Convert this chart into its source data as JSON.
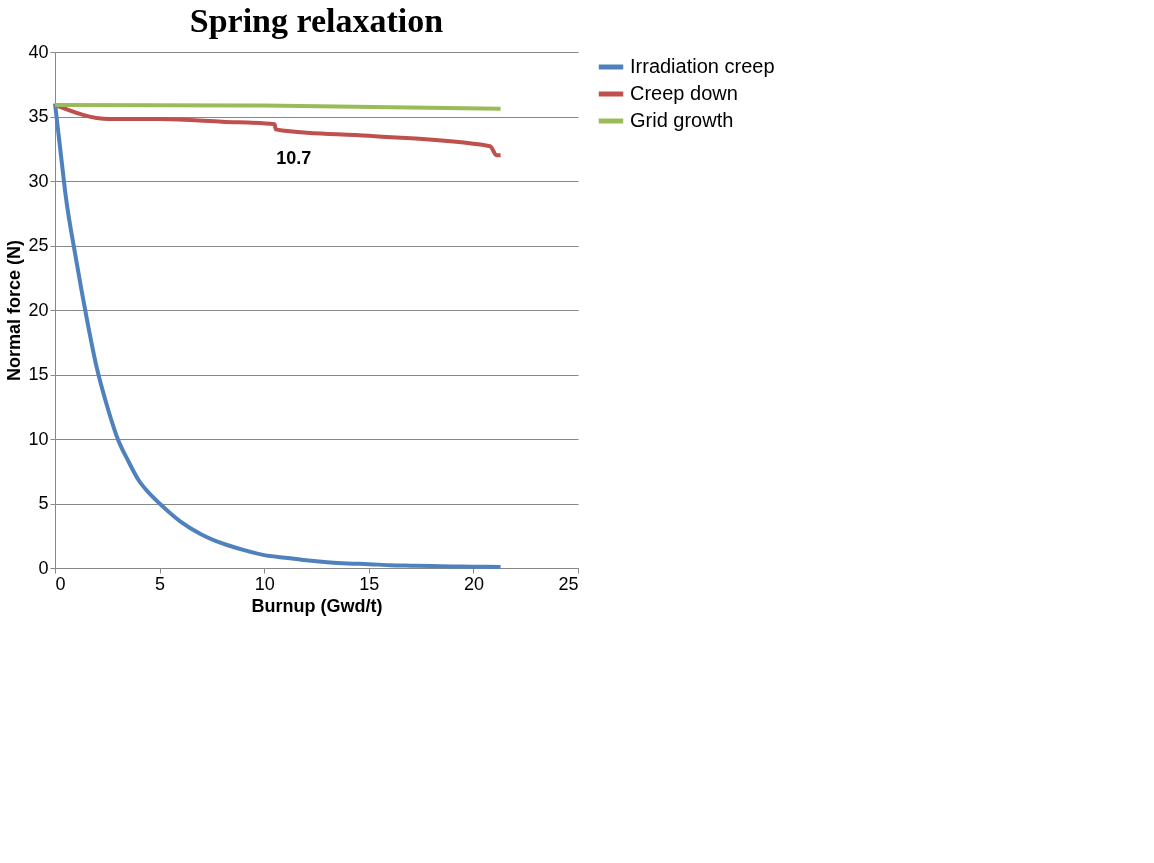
{
  "chart_data": {
    "type": "line",
    "title": "Spring relaxation",
    "xlabel": "Burnup (Gwd/t)",
    "ylabel": "Normal force (N)",
    "xlim": [
      0,
      25
    ],
    "xticks": [
      0,
      5,
      10,
      15,
      20,
      25
    ],
    "ylim": [
      0,
      40
    ],
    "yticks": [
      0,
      5,
      10,
      15,
      20,
      25,
      30,
      35,
      40
    ],
    "grid": "y",
    "legend": "right",
    "marker": "none",
    "line_style": "solid",
    "annotations": [
      {
        "text": "10.7",
        "x": 10.7,
        "y": 34.0
      }
    ],
    "series": [
      {
        "name": "Irradiation creep",
        "color": "#4f81bd",
        "x": [
          0,
          0.25,
          0.5,
          1,
          1.5,
          2,
          2.5,
          3,
          3.5,
          4,
          4.5,
          5,
          6,
          7,
          8,
          9,
          10,
          11,
          12,
          13,
          14,
          15,
          16,
          17,
          18,
          19,
          20,
          21.3
        ],
        "values": [
          36,
          32.5,
          29,
          24,
          19.5,
          15.5,
          12.5,
          10,
          8.3,
          6.8,
          5.8,
          5,
          3.6,
          2.6,
          1.9,
          1.4,
          1.0,
          0.8,
          0.6,
          0.45,
          0.35,
          0.3,
          0.22,
          0.18,
          0.15,
          0.12,
          0.1,
          0.08
        ]
      },
      {
        "name": "Creep down",
        "color": "#c0504d",
        "x": [
          0,
          2.6,
          5,
          8,
          10.5,
          10.55,
          11,
          15,
          20.8,
          21.1,
          21.3
        ],
        "values": [
          35.9,
          34.8,
          34.8,
          34.6,
          34.4,
          34.0,
          33.9,
          33.5,
          32.7,
          32.0,
          32.0
        ]
      },
      {
        "name": "Grid growth",
        "color": "#9bbb59",
        "x": [
          0,
          10,
          21.3
        ],
        "values": [
          35.9,
          35.85,
          35.6
        ]
      }
    ]
  }
}
